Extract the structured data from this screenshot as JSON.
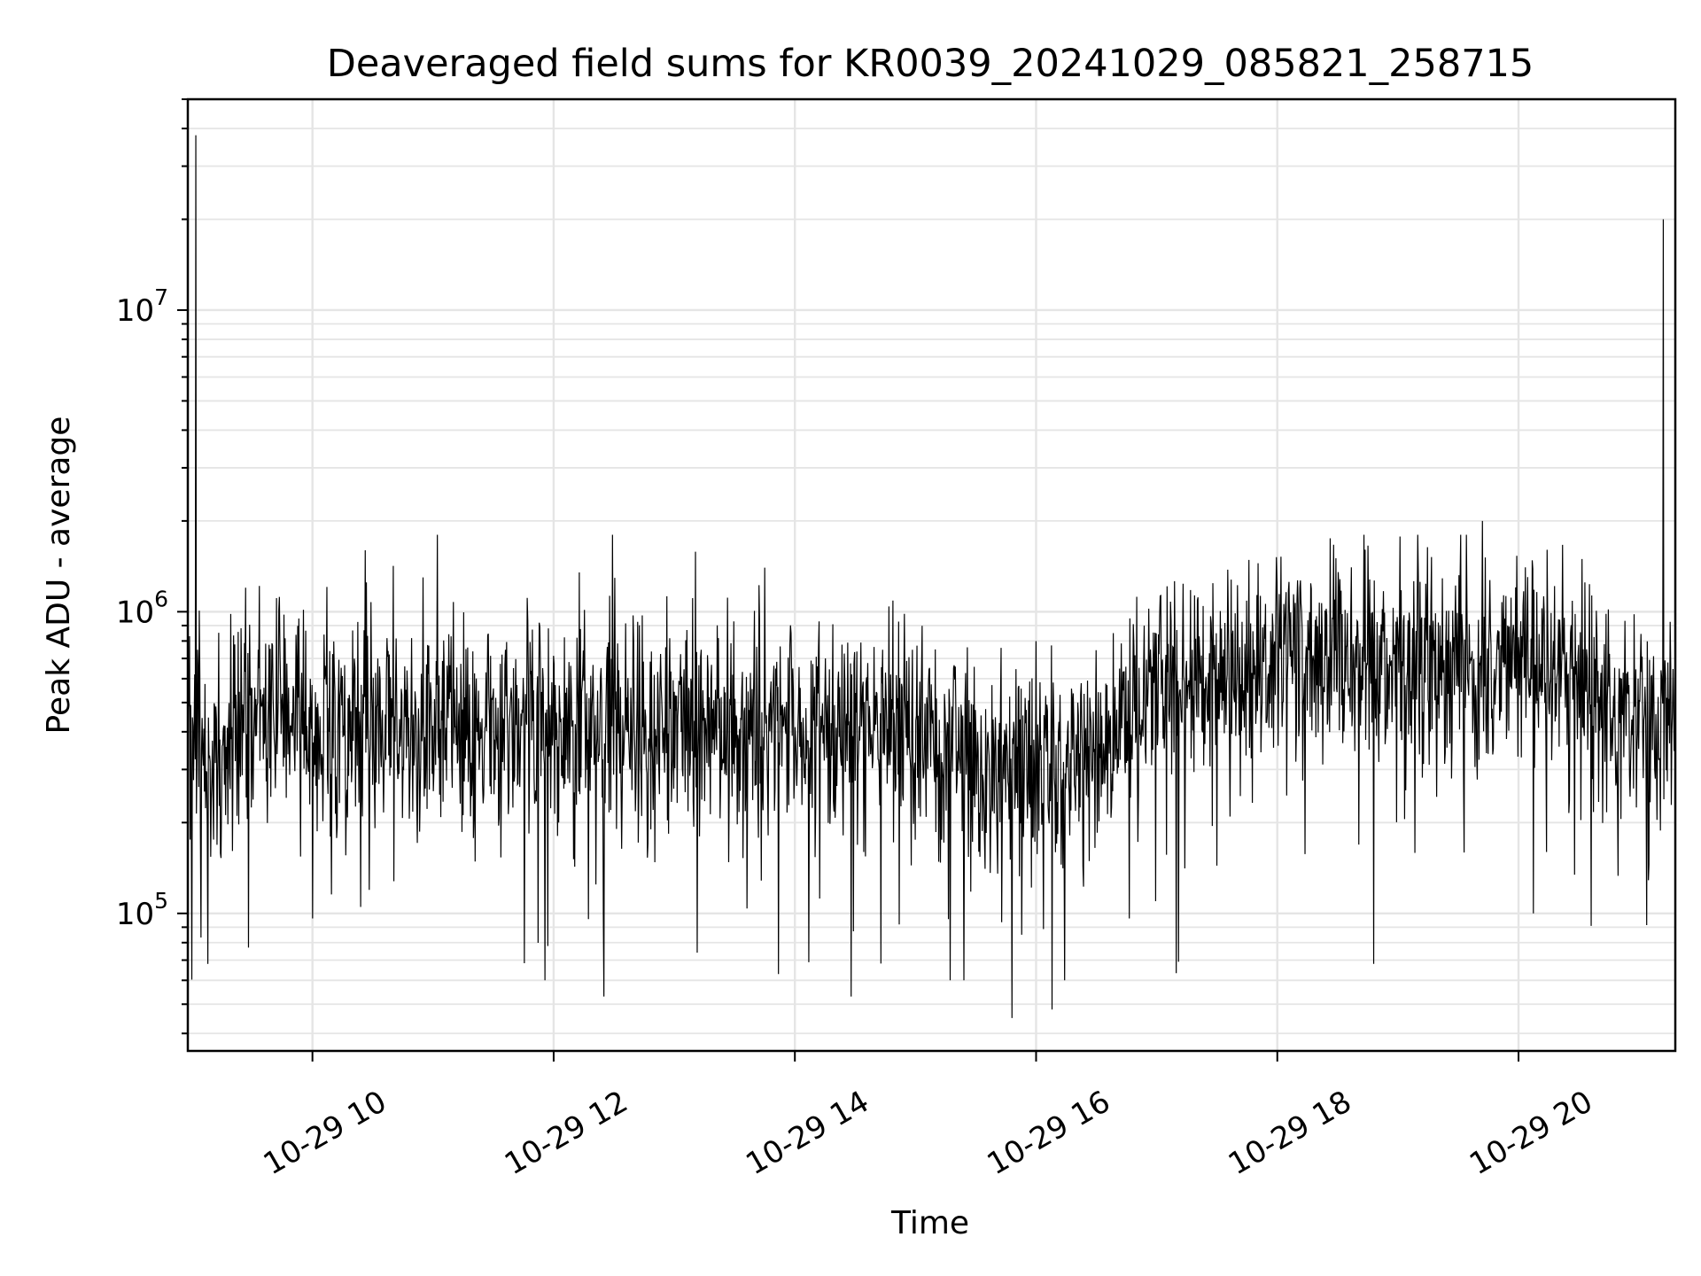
{
  "chart_data": {
    "type": "line",
    "title": "Deaveraged field sums for KR0039_20241029_085821_258715",
    "xlabel": "Time",
    "ylabel": "Peak ADU - average",
    "yscale": "log",
    "xlim": [
      "2024-10-29 08:58",
      "2024-10-29 21:18"
    ],
    "ylim": [
      35000,
      50000000
    ],
    "grid": true,
    "line_color": "#000000",
    "grid_color": "#e5e5e5",
    "x_ticks": [
      {
        "t": "2024-10-29 10:00",
        "label": "10-29 10"
      },
      {
        "t": "2024-10-29 12:00",
        "label": "10-29 12"
      },
      {
        "t": "2024-10-29 14:00",
        "label": "10-29 14"
      },
      {
        "t": "2024-10-29 16:00",
        "label": "10-29 16"
      },
      {
        "t": "2024-10-29 18:00",
        "label": "10-29 18"
      },
      {
        "t": "2024-10-29 20:00",
        "label": "10-29 20"
      }
    ],
    "y_ticks": [
      {
        "value": 100000,
        "base": "10",
        "exp": "5"
      },
      {
        "value": 1000000,
        "base": "10",
        "exp": "6"
      },
      {
        "value": 10000000,
        "base": "10",
        "exp": "7"
      }
    ],
    "baseline": [
      {
        "t": "2024-10-29 08:58",
        "value": 420000
      },
      {
        "t": "2024-10-29 09:10",
        "value": 300000
      },
      {
        "t": "2024-10-29 09:30",
        "value": 470000
      },
      {
        "t": "2024-10-29 10:00",
        "value": 430000
      },
      {
        "t": "2024-10-29 11:00",
        "value": 430000
      },
      {
        "t": "2024-10-29 12:00",
        "value": 420000
      },
      {
        "t": "2024-10-29 13:00",
        "value": 430000
      },
      {
        "t": "2024-10-29 14:00",
        "value": 410000
      },
      {
        "t": "2024-10-29 15:00",
        "value": 390000
      },
      {
        "t": "2024-10-29 15:45",
        "value": 300000
      },
      {
        "t": "2024-10-29 16:30",
        "value": 330000
      },
      {
        "t": "2024-10-29 17:00",
        "value": 600000
      },
      {
        "t": "2024-10-29 17:30",
        "value": 620000
      },
      {
        "t": "2024-10-29 18:00",
        "value": 720000
      },
      {
        "t": "2024-10-29 19:00",
        "value": 680000
      },
      {
        "t": "2024-10-29 20:00",
        "value": 680000
      },
      {
        "t": "2024-10-29 20:40",
        "value": 600000
      },
      {
        "t": "2024-10-29 21:00",
        "value": 380000
      },
      {
        "t": "2024-10-29 21:18",
        "value": 450000
      }
    ],
    "peaks": [
      {
        "t": "2024-10-29 09:02",
        "value": 38000000
      },
      {
        "t": "2024-10-29 21:12",
        "value": 20000000
      },
      {
        "t": "2024-10-29 19:42",
        "value": 2000000
      },
      {
        "t": "2024-10-29 13:45",
        "value": 1400000
      },
      {
        "t": "2024-10-29 10:55",
        "value": 1300000
      }
    ],
    "troughs": [
      {
        "t": "2024-10-29 15:48",
        "value": 45000
      },
      {
        "t": "2024-10-29 16:08",
        "value": 48000
      },
      {
        "t": "2024-10-29 12:25",
        "value": 53000
      },
      {
        "t": "2024-10-29 14:28",
        "value": 53000
      },
      {
        "t": "2024-10-29 09:08",
        "value": 68000
      },
      {
        "t": "2024-10-29 18:48",
        "value": 68000
      }
    ]
  }
}
